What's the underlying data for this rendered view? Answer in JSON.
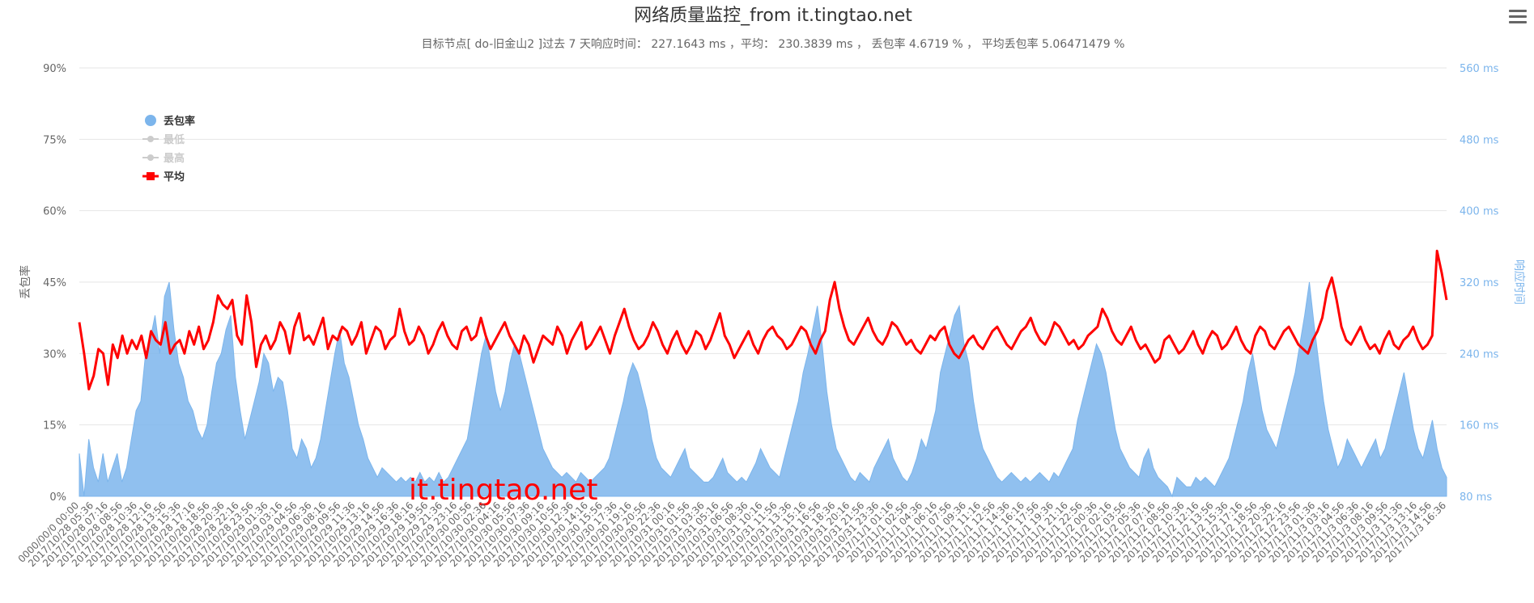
{
  "header": {
    "title": "网络质量监控_from it.tingtao.net",
    "subtitle": "目标节点[ do-旧金山2 ]过去 7 天响应时间： 227.1643 ms ，平均： 230.3839 ms ， 丢包率 4.6719 % ， 平均丢包率 5.06471479 %"
  },
  "watermark": "it.tingtao.net",
  "menu": {
    "icon": "hamburger-menu-icon"
  },
  "colors": {
    "loss": "#7cb5ec",
    "avg": "#ff0000",
    "legend_inactive": "#cccccc",
    "grid": "#e6e6e6"
  },
  "chart_data": {
    "type": "line",
    "left_axis": {
      "label": "丢包率",
      "ticks": [
        "0%",
        "15%",
        "30%",
        "45%",
        "60%",
        "75%",
        "90%"
      ],
      "range": [
        0,
        90
      ]
    },
    "right_axis": {
      "label": "响应时间",
      "ticks": [
        "80 ms",
        "160 ms",
        "240 ms",
        "320 ms",
        "400 ms",
        "480 ms",
        "560 ms"
      ],
      "range": [
        80,
        560
      ]
    },
    "legend": [
      {
        "name": "丢包率",
        "type": "area",
        "active": true
      },
      {
        "name": "最低",
        "type": "line",
        "active": false
      },
      {
        "name": "最高",
        "type": "line",
        "active": false
      },
      {
        "name": "平均",
        "type": "line",
        "active": true
      }
    ],
    "x_labels": [
      "0000/00/0 00:00",
      "2017/10/28 05:36",
      "2017/10/28 07:16",
      "2017/10/28 08:56",
      "2017/10/28 10:36",
      "2017/10/28 12:16",
      "2017/10/28 13:56",
      "2017/10/28 15:36",
      "2017/10/28 17:16",
      "2017/10/28 18:56",
      "2017/10/28 20:36",
      "2017/10/28 22:16",
      "2017/10/28 23:56",
      "2017/10/29 01:36",
      "2017/10/29 03:16",
      "2017/10/29 04:56",
      "2017/10/29 06:36",
      "2017/10/29 08:16",
      "2017/10/29 09:56",
      "2017/10/29 11:36",
      "2017/10/29 13:16",
      "2017/10/29 14:56",
      "2017/10/29 16:36",
      "2017/10/29 18:16",
      "2017/10/29 19:56",
      "2017/10/29 21:36",
      "2017/10/29 23:16",
      "2017/10/30 00:56",
      "2017/10/30 02:36",
      "2017/10/30 04:16",
      "2017/10/30 05:56",
      "2017/10/30 07:36",
      "2017/10/30 09:16",
      "2017/10/30 10:56",
      "2017/10/30 12:36",
      "2017/10/30 14:16",
      "2017/10/30 15:56",
      "2017/10/30 17:36",
      "2017/10/30 19:16",
      "2017/10/30 20:56",
      "2017/10/30 22:36",
      "2017/10/31 00:16",
      "2017/10/31 01:56",
      "2017/10/31 03:36",
      "2017/10/31 05:16",
      "2017/10/31 06:56",
      "2017/10/31 08:36",
      "2017/10/31 10:16",
      "2017/10/31 11:56",
      "2017/10/31 13:36",
      "2017/10/31 15:16",
      "2017/10/31 16:56",
      "2017/10/31 18:36",
      "2017/10/31 20:16",
      "2017/10/31 21:56",
      "2017/10/31 23:36",
      "2017/11/1 01:16",
      "2017/11/1 02:56",
      "2017/11/1 04:36",
      "2017/11/1 06:16",
      "2017/11/1 07:56",
      "2017/11/1 09:36",
      "2017/11/1 11:16",
      "2017/11/1 12:56",
      "2017/11/1 14:36",
      "2017/11/1 16:16",
      "2017/11/1 17:56",
      "2017/11/1 19:36",
      "2017/11/1 21:16",
      "2017/11/1 22:56",
      "2017/11/2 00:36",
      "2017/11/2 02:16",
      "2017/11/2 03:56",
      "2017/11/2 05:36",
      "2017/11/2 07:16",
      "2017/11/2 08:56",
      "2017/11/2 10:36",
      "2017/11/2 12:16",
      "2017/11/2 13:56",
      "2017/11/2 15:36",
      "2017/11/2 17:16",
      "2017/11/2 18:56",
      "2017/11/2 20:36",
      "2017/11/2 22:16",
      "2017/11/2 23:56",
      "2017/11/3 01:36",
      "2017/11/3 03:16",
      "2017/11/3 04:56",
      "2017/11/3 06:36",
      "2017/11/3 08:16",
      "2017/11/3 09:56",
      "2017/11/3 11:36",
      "2017/11/3 13:16",
      "2017/11/3 14:56",
      "2017/11/3 16:36"
    ],
    "series": [
      {
        "name": "丢包率",
        "unit": "%",
        "axis": "left",
        "values": [
          9,
          0,
          12,
          6,
          3,
          9,
          3,
          6,
          9,
          3,
          6,
          12,
          18,
          20,
          30,
          33,
          38,
          30,
          42,
          45,
          35,
          28,
          25,
          20,
          18,
          14,
          12,
          15,
          22,
          28,
          30,
          35,
          38,
          25,
          18,
          12,
          16,
          20,
          24,
          30,
          28,
          22,
          25,
          24,
          18,
          10,
          8,
          12,
          10,
          6,
          8,
          12,
          18,
          24,
          30,
          35,
          28,
          25,
          20,
          15,
          12,
          8,
          6,
          4,
          6,
          5,
          4,
          3,
          4,
          3,
          4,
          3,
          5,
          3,
          4,
          3,
          5,
          3,
          4,
          6,
          8,
          10,
          12,
          18,
          24,
          30,
          34,
          28,
          22,
          18,
          22,
          28,
          32,
          30,
          26,
          22,
          18,
          14,
          10,
          8,
          6,
          5,
          4,
          5,
          4,
          3,
          5,
          4,
          3,
          4,
          5,
          6,
          8,
          12,
          16,
          20,
          25,
          28,
          26,
          22,
          18,
          12,
          8,
          6,
          5,
          4,
          6,
          8,
          10,
          6,
          5,
          4,
          3,
          3,
          4,
          6,
          8,
          5,
          4,
          3,
          4,
          3,
          5,
          7,
          10,
          8,
          6,
          5,
          4,
          8,
          12,
          16,
          20,
          26,
          30,
          35,
          40,
          32,
          22,
          15,
          10,
          8,
          6,
          4,
          3,
          5,
          4,
          3,
          6,
          8,
          10,
          12,
          8,
          6,
          4,
          3,
          5,
          8,
          12,
          10,
          14,
          18,
          26,
          30,
          34,
          38,
          40,
          32,
          28,
          20,
          14,
          10,
          8,
          6,
          4,
          3,
          4,
          5,
          4,
          3,
          4,
          3,
          4,
          5,
          4,
          3,
          5,
          4,
          6,
          8,
          10,
          16,
          20,
          24,
          28,
          32,
          30,
          26,
          20,
          14,
          10,
          8,
          6,
          5,
          4,
          8,
          10,
          6,
          4,
          3,
          2,
          0,
          4,
          3,
          2,
          2,
          4,
          3,
          4,
          3,
          2,
          4,
          6,
          8,
          12,
          16,
          20,
          26,
          30,
          24,
          18,
          14,
          12,
          10,
          14,
          18,
          22,
          26,
          32,
          38,
          45,
          36,
          28,
          20,
          14,
          10,
          6,
          8,
          12,
          10,
          8,
          6,
          8,
          10,
          12,
          8,
          10,
          14,
          18,
          22,
          26,
          20,
          14,
          10,
          8,
          12,
          16,
          10,
          6,
          4
        ]
      },
      {
        "name": "平均",
        "unit": "ms",
        "axis": "right",
        "values": [
          275,
          240,
          200,
          215,
          245,
          240,
          205,
          250,
          235,
          260,
          240,
          255,
          245,
          260,
          235,
          265,
          255,
          250,
          275,
          240,
          250,
          255,
          240,
          265,
          250,
          270,
          245,
          255,
          275,
          305,
          295,
          290,
          300,
          260,
          250,
          305,
          275,
          225,
          250,
          260,
          245,
          255,
          275,
          265,
          240,
          270,
          285,
          255,
          260,
          250,
          265,
          280,
          245,
          260,
          255,
          270,
          265,
          250,
          260,
          275,
          240,
          255,
          270,
          265,
          245,
          255,
          260,
          290,
          265,
          250,
          255,
          270,
          260,
          240,
          250,
          265,
          275,
          260,
          250,
          245,
          265,
          270,
          255,
          260,
          280,
          260,
          245,
          255,
          265,
          275,
          260,
          250,
          240,
          260,
          250,
          230,
          245,
          260,
          255,
          250,
          270,
          260,
          240,
          255,
          265,
          275,
          245,
          250,
          260,
          270,
          255,
          240,
          260,
          275,
          290,
          270,
          255,
          245,
          250,
          260,
          275,
          265,
          250,
          240,
          255,
          265,
          250,
          240,
          250,
          265,
          260,
          245,
          255,
          270,
          285,
          260,
          250,
          235,
          245,
          255,
          265,
          250,
          240,
          255,
          265,
          270,
          260,
          255,
          245,
          250,
          260,
          270,
          265,
          250,
          240,
          255,
          265,
          300,
          320,
          290,
          270,
          255,
          250,
          260,
          270,
          280,
          265,
          255,
          250,
          260,
          275,
          270,
          260,
          250,
          255,
          245,
          240,
          250,
          260,
          255,
          265,
          270,
          250,
          240,
          235,
          245,
          255,
          260,
          250,
          245,
          255,
          265,
          270,
          260,
          250,
          245,
          255,
          265,
          270,
          280,
          265,
          255,
          250,
          260,
          275,
          270,
          260,
          250,
          255,
          245,
          250,
          260,
          265,
          270,
          290,
          280,
          265,
          255,
          250,
          260,
          270,
          255,
          245,
          250,
          240,
          230,
          235,
          255,
          260,
          250,
          240,
          245,
          255,
          265,
          250,
          240,
          255,
          265,
          260,
          245,
          250,
          260,
          270,
          255,
          245,
          240,
          260,
          270,
          265,
          250,
          245,
          255,
          265,
          270,
          260,
          250,
          245,
          240,
          255,
          265,
          280,
          310,
          325,
          300,
          270,
          255,
          250,
          260,
          270,
          255,
          245,
          250,
          240,
          255,
          265,
          250,
          245,
          255,
          260,
          270,
          255,
          245,
          250,
          260,
          355,
          330,
          300
        ]
      },
      {
        "name": "最低",
        "unit": "ms",
        "axis": "right",
        "values": []
      },
      {
        "name": "最高",
        "unit": "ms",
        "axis": "right",
        "values": []
      }
    ]
  }
}
